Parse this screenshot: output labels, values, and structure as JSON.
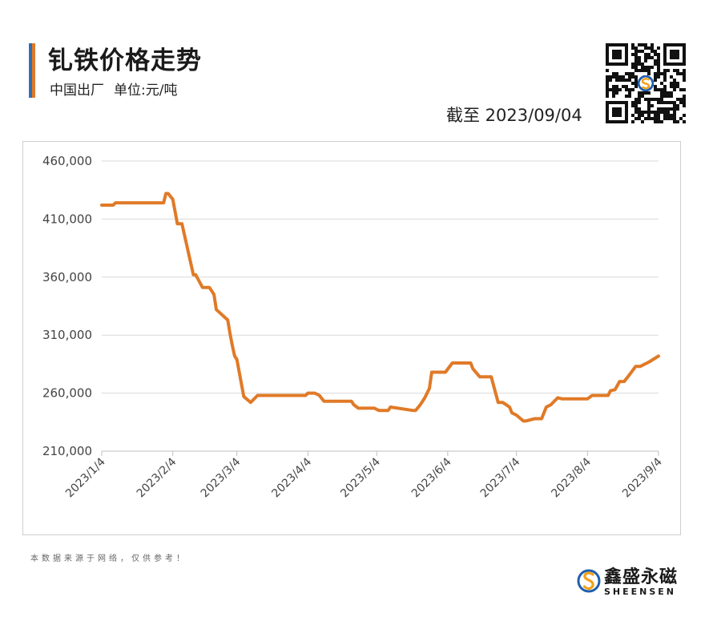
{
  "header": {
    "title": "钆铁价格走势",
    "subtitle_left": "中国出厂",
    "subtitle_right": "单位:元/吨",
    "as_of": "截至 2023/09/04",
    "accent_colors": [
      "#2f6fb8",
      "#e07a27"
    ]
  },
  "footer": {
    "note": "本数据来源于网络，仅供参考！",
    "brand_name": "鑫盛永磁",
    "brand_sub": "SHEENSEN",
    "brand_colors": [
      "#1f5fae",
      "#f2a01c"
    ]
  },
  "chart_data": {
    "type": "line",
    "title": "钆铁价格走势",
    "ylabel": "",
    "xlabel": "",
    "ylim": [
      210000,
      460000
    ],
    "yticks": [
      210000,
      260000,
      310000,
      360000,
      410000,
      460000
    ],
    "ytick_labels": [
      "210,000",
      "260,000",
      "310,000",
      "360,000",
      "410,000",
      "460,000"
    ],
    "xlim": [
      "2023-01-04",
      "2023-09-04"
    ],
    "xticks": [
      "2023-01-04",
      "2023-02-04",
      "2023-03-04",
      "2023-04-04",
      "2023-05-04",
      "2023-06-04",
      "2023-07-04",
      "2023-08-04",
      "2023-09-04"
    ],
    "xtick_labels": [
      "2023/1/4",
      "2023/2/4",
      "2023/3/4",
      "2023/4/4",
      "2023/5/4",
      "2023/6/4",
      "2023/7/4",
      "2023/8/4",
      "2023/9/4"
    ],
    "grid": true,
    "line_color": "#e07a27",
    "series": [
      {
        "name": "",
        "x": [
          "2023-01-04",
          "2023-01-09",
          "2023-01-10",
          "2023-01-13",
          "2023-01-20",
          "2023-01-31",
          "2023-02-01",
          "2023-02-02",
          "2023-02-04",
          "2023-02-06",
          "2023-02-08",
          "2023-02-13",
          "2023-02-14",
          "2023-02-17",
          "2023-02-20",
          "2023-02-22",
          "2023-02-23",
          "2023-02-28",
          "2023-03-01",
          "2023-03-02",
          "2023-03-03",
          "2023-03-04",
          "2023-03-07",
          "2023-03-10",
          "2023-03-13",
          "2023-03-15",
          "2023-03-17",
          "2023-03-20",
          "2023-03-21",
          "2023-04-03",
          "2023-04-04",
          "2023-04-07",
          "2023-04-09",
          "2023-04-11",
          "2023-04-23",
          "2023-04-24",
          "2023-04-26",
          "2023-05-03",
          "2023-05-05",
          "2023-05-09",
          "2023-05-10",
          "2023-05-20",
          "2023-05-21",
          "2023-05-23",
          "2023-05-25",
          "2023-05-27",
          "2023-05-28",
          "2023-06-01",
          "2023-06-03",
          "2023-06-06",
          "2023-06-07",
          "2023-06-14",
          "2023-06-15",
          "2023-06-18",
          "2023-06-23",
          "2023-06-26",
          "2023-06-28",
          "2023-07-01",
          "2023-07-02",
          "2023-07-04",
          "2023-07-07",
          "2023-07-08",
          "2023-07-12",
          "2023-07-15",
          "2023-07-17",
          "2023-07-19",
          "2023-07-22",
          "2023-07-24",
          "2023-07-25",
          "2023-07-27",
          "2023-08-04",
          "2023-08-06",
          "2023-08-13",
          "2023-08-14",
          "2023-08-16",
          "2023-08-18",
          "2023-08-20",
          "2023-08-22",
          "2023-08-25",
          "2023-08-27",
          "2023-08-31",
          "2023-09-04"
        ],
        "values": [
          422000,
          422000,
          424000,
          424000,
          424000,
          424000,
          432000,
          432000,
          427000,
          406000,
          406000,
          362000,
          362000,
          351000,
          351000,
          345000,
          332000,
          323000,
          311000,
          301000,
          292000,
          289000,
          257000,
          252000,
          258000,
          258000,
          258000,
          258000,
          258000,
          258000,
          260000,
          260000,
          258000,
          253000,
          253000,
          250000,
          247000,
          247000,
          245000,
          245000,
          248000,
          245000,
          245000,
          250000,
          256000,
          264000,
          278000,
          278000,
          278000,
          286000,
          286000,
          286000,
          281000,
          274000,
          274000,
          252000,
          252000,
          248000,
          243000,
          241000,
          236000,
          236000,
          238000,
          238000,
          248000,
          250000,
          256000,
          255000,
          255000,
          255000,
          255000,
          258000,
          258000,
          262000,
          263000,
          270000,
          270000,
          275000,
          283000,
          283000,
          287000,
          292000
        ]
      }
    ]
  }
}
